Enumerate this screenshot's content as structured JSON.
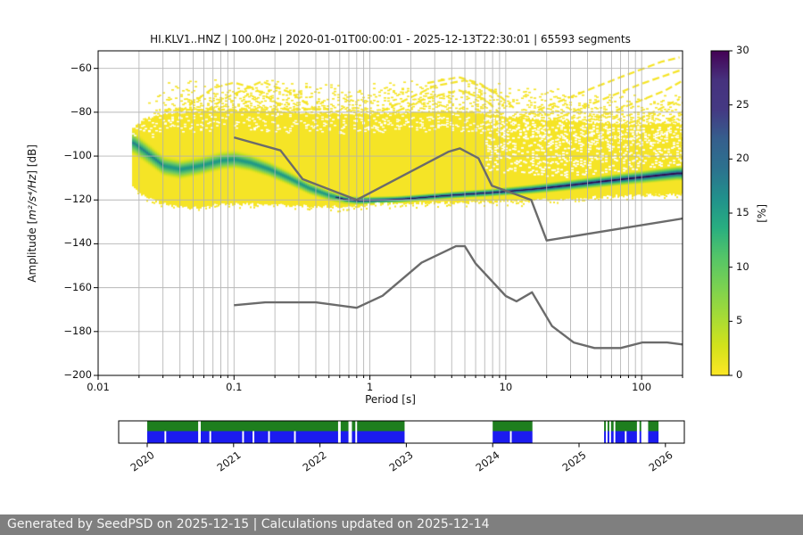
{
  "chart_data": {
    "type": "heatmap",
    "title": "HI.KLV1..HNZ | 100.0Hz | 2020-01-01T00:00:01 - 2025-12-13T22:30:01 | 65593 segments",
    "xlabel": "Period [s]",
    "ylabel_parts": {
      "prefix": "Amplitude [",
      "math": "m²/s⁴/Hz",
      "suffix": "] [dB]"
    },
    "xlim": [
      0.01,
      200
    ],
    "ylim": [
      -200,
      -52
    ],
    "grid": true,
    "x_tick_values": [
      0.01,
      0.1,
      1,
      10,
      100
    ],
    "x_tick_labels": [
      "0.01",
      "0.1",
      "1",
      "10",
      "100"
    ],
    "y_tick_values": [
      -60,
      -80,
      -100,
      -120,
      -140,
      -160,
      -180,
      -200
    ],
    "y_tick_labels": [
      "−60",
      "−80",
      "−100",
      "−120",
      "−140",
      "−160",
      "−180",
      "−200"
    ],
    "colorbar": {
      "label": "[%]",
      "tick_values": [
        0,
        5,
        10,
        15,
        20,
        25,
        30
      ],
      "tick_labels": [
        "0",
        "5",
        "10",
        "15",
        "20",
        "25",
        "30"
      ],
      "cmap": "viridis_r",
      "stops": [
        "#fde725",
        "#d2e21b",
        "#a5db36",
        "#7ad151",
        "#54c568",
        "#28ae80",
        "#21918c",
        "#2c728e",
        "#355f8d",
        "#443983",
        "#46327e",
        "#440154"
      ]
    },
    "noise_models": {
      "color": "#6b6b6b",
      "nhnm": [
        [
          0.1,
          -91.5
        ],
        [
          0.22,
          -97.4
        ],
        [
          0.32,
          -110.5
        ],
        [
          0.8,
          -120.0
        ],
        [
          3.8,
          -98.0
        ],
        [
          4.6,
          -96.5
        ],
        [
          6.3,
          -101.0
        ],
        [
          7.9,
          -113.5
        ],
        [
          15.4,
          -120.0
        ],
        [
          20.0,
          -138.5
        ],
        [
          200.0,
          -128.5
        ]
      ],
      "nlnm": [
        [
          0.1,
          -168.0
        ],
        [
          0.17,
          -166.7
        ],
        [
          0.4,
          -166.7
        ],
        [
          0.8,
          -169.2
        ],
        [
          1.24,
          -163.7
        ],
        [
          2.4,
          -148.6
        ],
        [
          4.3,
          -141.1
        ],
        [
          5.0,
          -141.1
        ],
        [
          6.0,
          -149.0
        ],
        [
          10.0,
          -163.8
        ],
        [
          12.0,
          -166.2
        ],
        [
          15.6,
          -162.1
        ],
        [
          21.9,
          -177.5
        ],
        [
          31.6,
          -185.0
        ],
        [
          45.0,
          -187.5
        ],
        [
          70.0,
          -187.5
        ],
        [
          101.0,
          -185.0
        ],
        [
          154.0,
          -185.0
        ],
        [
          200.0,
          -185.9
        ]
      ]
    },
    "histogram": {
      "start_period": 0.0178,
      "body_color": "#f5e426",
      "mode_dark_color": "#2d0b54",
      "mode_curve": [
        [
          0.018,
          -94
        ],
        [
          0.022,
          -98
        ],
        [
          0.03,
          -104.5
        ],
        [
          0.04,
          -106
        ],
        [
          0.055,
          -104.5
        ],
        [
          0.08,
          -102
        ],
        [
          0.1,
          -101.5
        ],
        [
          0.13,
          -103
        ],
        [
          0.18,
          -106
        ],
        [
          0.25,
          -110
        ],
        [
          0.35,
          -114.5
        ],
        [
          0.5,
          -118
        ],
        [
          0.65,
          -119.8
        ],
        [
          0.8,
          -120.3
        ],
        [
          1.0,
          -120.2
        ],
        [
          1.5,
          -119.8
        ],
        [
          2.0,
          -119.3
        ],
        [
          3.0,
          -118.4
        ],
        [
          4.0,
          -117.8
        ],
        [
          5.0,
          -117.4
        ],
        [
          6.0,
          -117.1
        ],
        [
          8.0,
          -116.6
        ],
        [
          10.0,
          -116.1
        ],
        [
          15.0,
          -115.2
        ],
        [
          20.0,
          -114.4
        ],
        [
          30.0,
          -113.2
        ],
        [
          50.0,
          -111.6
        ],
        [
          70.0,
          -110.6
        ],
        [
          100.0,
          -109.6
        ],
        [
          140.0,
          -108.6
        ],
        [
          180.0,
          -107.9
        ]
      ],
      "upper_envelope": [
        [
          0.018,
          -87
        ],
        [
          0.022,
          -83
        ],
        [
          0.03,
          -81
        ],
        [
          0.05,
          -79.5
        ],
        [
          0.1,
          -79
        ],
        [
          0.2,
          -79.5
        ],
        [
          0.4,
          -80.5
        ],
        [
          0.8,
          -81
        ],
        [
          1.5,
          -80.5
        ],
        [
          3.0,
          -79.5
        ],
        [
          6.0,
          -80
        ],
        [
          10.0,
          -82
        ],
        [
          20.0,
          -83.5
        ],
        [
          40.0,
          -84.5
        ],
        [
          80.0,
          -85.5
        ],
        [
          180.0,
          -85
        ]
      ],
      "lower_envelope": [
        [
          0.018,
          -114
        ],
        [
          0.02,
          -117
        ],
        [
          0.024,
          -120
        ],
        [
          0.03,
          -122
        ],
        [
          0.045,
          -124
        ],
        [
          0.07,
          -122.5
        ],
        [
          0.1,
          -122
        ],
        [
          0.2,
          -122.5
        ],
        [
          0.35,
          -123
        ],
        [
          0.7,
          -123.5
        ],
        [
          0.9,
          -122.5
        ],
        [
          1.2,
          -121.5
        ],
        [
          2.0,
          -121.5
        ],
        [
          4.0,
          -121.5
        ],
        [
          8.0,
          -121
        ],
        [
          15.0,
          -120.5
        ],
        [
          30.0,
          -119.5
        ],
        [
          60.0,
          -118.5
        ],
        [
          120.0,
          -118
        ],
        [
          180.0,
          -117.5
        ]
      ],
      "wisps": [
        [
          [
            0.025,
            -91
          ],
          [
            0.04,
            -80
          ],
          [
            0.07,
            -69
          ],
          [
            0.1,
            -66.5
          ],
          [
            0.14,
            -69
          ],
          [
            0.22,
            -77
          ],
          [
            0.35,
            -85
          ]
        ],
        [
          [
            0.05,
            -83
          ],
          [
            0.09,
            -73
          ],
          [
            0.16,
            -66
          ],
          [
            0.26,
            -71
          ],
          [
            0.45,
            -81
          ]
        ],
        [
          [
            0.028,
            -79
          ],
          [
            0.5,
            -78.5
          ]
        ],
        [
          [
            0.7,
            -86
          ],
          [
            1.5,
            -77
          ],
          [
            3.0,
            -68
          ],
          [
            5.0,
            -65.5
          ],
          [
            8.0,
            -70
          ],
          [
            12.0,
            -79
          ]
        ],
        [
          [
            1.2,
            -83
          ],
          [
            2.5,
            -74
          ],
          [
            4.5,
            -70
          ],
          [
            7.0,
            -74
          ],
          [
            10.0,
            -83
          ]
        ],
        [
          [
            2.5,
            -67
          ],
          [
            4.5,
            -64
          ],
          [
            6.5,
            -67
          ],
          [
            9.0,
            -73
          ]
        ],
        [
          [
            12.0,
            -83
          ],
          [
            30.0,
            -73
          ],
          [
            70.0,
            -64
          ],
          [
            140.0,
            -57
          ],
          [
            190.0,
            -55
          ]
        ],
        [
          [
            15.0,
            -88
          ],
          [
            40.0,
            -77
          ],
          [
            100.0,
            -67
          ],
          [
            190.0,
            -61
          ]
        ],
        [
          [
            20.0,
            -90
          ],
          [
            60.0,
            -80
          ],
          [
            150.0,
            -70
          ],
          [
            195.0,
            -66
          ]
        ],
        [
          [
            30.0,
            -93
          ],
          [
            90.0,
            -84
          ],
          [
            190.0,
            -74
          ]
        ],
        [
          [
            50.0,
            -95
          ],
          [
            120.0,
            -88
          ],
          [
            195.0,
            -80
          ]
        ]
      ]
    }
  },
  "timeline": {
    "year_labels": [
      "2020",
      "2021",
      "2022",
      "2023",
      "2024",
      "2025",
      "2026"
    ],
    "year_values": [
      2020,
      2021,
      2022,
      2023,
      2024,
      2025,
      2026
    ],
    "range": [
      2019.67,
      2026.22
    ],
    "green_color": "#1e7e1e",
    "blue_color": "#1b1bef",
    "green_segments": [
      [
        2020.0,
        2020.59
      ],
      [
        2020.62,
        2022.21
      ],
      [
        2022.24,
        2022.33
      ],
      [
        2022.37,
        2022.41
      ],
      [
        2022.43,
        2022.98
      ],
      [
        2024.0,
        2024.46
      ],
      [
        2025.29,
        2025.31
      ],
      [
        2025.33,
        2025.35
      ],
      [
        2025.37,
        2025.4
      ],
      [
        2025.42,
        2025.67
      ],
      [
        2025.7,
        2025.72
      ],
      [
        2025.8,
        2025.92
      ]
    ],
    "blue_segments": [
      [
        2020.0,
        2020.2
      ],
      [
        2020.22,
        2020.59
      ],
      [
        2020.62,
        2020.72
      ],
      [
        2020.74,
        2021.1
      ],
      [
        2021.12,
        2021.22
      ],
      [
        2021.24,
        2021.4
      ],
      [
        2021.42,
        2021.7
      ],
      [
        2021.72,
        2022.21
      ],
      [
        2022.24,
        2022.33
      ],
      [
        2022.37,
        2022.41
      ],
      [
        2022.43,
        2022.98
      ],
      [
        2024.0,
        2024.2
      ],
      [
        2024.22,
        2024.46
      ],
      [
        2025.29,
        2025.31
      ],
      [
        2025.33,
        2025.35
      ],
      [
        2025.37,
        2025.4
      ],
      [
        2025.42,
        2025.53
      ],
      [
        2025.55,
        2025.67
      ],
      [
        2025.7,
        2025.72
      ],
      [
        2025.8,
        2025.92
      ]
    ]
  },
  "footer": {
    "text": "Generated by SeedPSD on 2025-12-15 | Calculations updated on 2025-12-14"
  }
}
